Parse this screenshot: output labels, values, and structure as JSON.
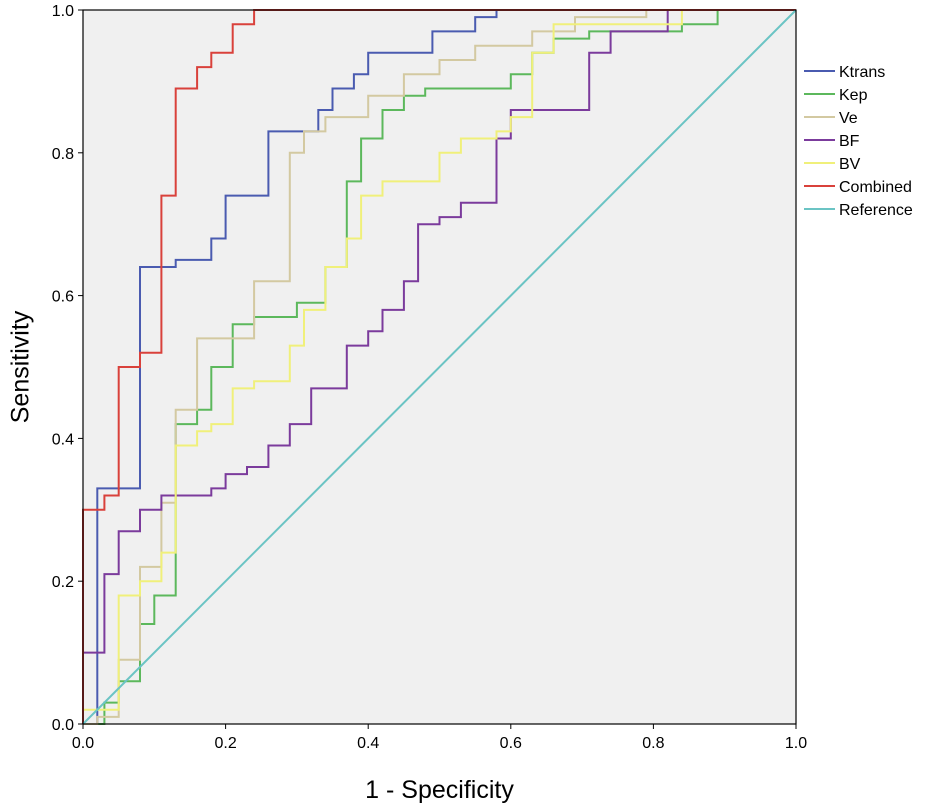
{
  "chart_data": {
    "type": "line",
    "title": "",
    "xlabel": "1 - Specificity",
    "ylabel": "Sensitivity",
    "xlim": [
      0,
      1
    ],
    "ylim": [
      0,
      1
    ],
    "xticks": [
      "0.0",
      "0.2",
      "0.4",
      "0.6",
      "0.8",
      "1.0"
    ],
    "yticks": [
      "0.0",
      "0.2",
      "0.4",
      "0.6",
      "0.8",
      "1.0"
    ],
    "grid": false,
    "legend_position": "right",
    "series": [
      {
        "name": "Ktrans",
        "color": "#4a5bb0",
        "step": true,
        "points": [
          [
            0,
            0
          ],
          [
            0.02,
            0
          ],
          [
            0.02,
            0.33
          ],
          [
            0.08,
            0.33
          ],
          [
            0.08,
            0.64
          ],
          [
            0.13,
            0.64
          ],
          [
            0.13,
            0.65
          ],
          [
            0.18,
            0.65
          ],
          [
            0.18,
            0.68
          ],
          [
            0.2,
            0.68
          ],
          [
            0.2,
            0.74
          ],
          [
            0.26,
            0.74
          ],
          [
            0.26,
            0.83
          ],
          [
            0.33,
            0.83
          ],
          [
            0.33,
            0.86
          ],
          [
            0.35,
            0.86
          ],
          [
            0.35,
            0.89
          ],
          [
            0.38,
            0.89
          ],
          [
            0.38,
            0.91
          ],
          [
            0.4,
            0.91
          ],
          [
            0.4,
            0.94
          ],
          [
            0.49,
            0.94
          ],
          [
            0.49,
            0.97
          ],
          [
            0.55,
            0.97
          ],
          [
            0.55,
            0.99
          ],
          [
            0.58,
            0.99
          ],
          [
            0.58,
            1
          ],
          [
            1,
            1
          ]
        ]
      },
      {
        "name": "Kep",
        "color": "#5cb85c",
        "step": true,
        "points": [
          [
            0,
            0
          ],
          [
            0.03,
            0
          ],
          [
            0.03,
            0.03
          ],
          [
            0.05,
            0.03
          ],
          [
            0.05,
            0.06
          ],
          [
            0.08,
            0.06
          ],
          [
            0.08,
            0.14
          ],
          [
            0.1,
            0.14
          ],
          [
            0.1,
            0.18
          ],
          [
            0.13,
            0.18
          ],
          [
            0.13,
            0.42
          ],
          [
            0.16,
            0.42
          ],
          [
            0.16,
            0.44
          ],
          [
            0.18,
            0.44
          ],
          [
            0.18,
            0.5
          ],
          [
            0.21,
            0.5
          ],
          [
            0.21,
            0.56
          ],
          [
            0.24,
            0.56
          ],
          [
            0.24,
            0.57
          ],
          [
            0.3,
            0.57
          ],
          [
            0.3,
            0.59
          ],
          [
            0.34,
            0.59
          ],
          [
            0.34,
            0.64
          ],
          [
            0.37,
            0.64
          ],
          [
            0.37,
            0.76
          ],
          [
            0.39,
            0.76
          ],
          [
            0.39,
            0.82
          ],
          [
            0.42,
            0.82
          ],
          [
            0.42,
            0.86
          ],
          [
            0.45,
            0.86
          ],
          [
            0.45,
            0.88
          ],
          [
            0.48,
            0.88
          ],
          [
            0.48,
            0.89
          ],
          [
            0.6,
            0.89
          ],
          [
            0.6,
            0.91
          ],
          [
            0.63,
            0.91
          ],
          [
            0.63,
            0.94
          ],
          [
            0.66,
            0.94
          ],
          [
            0.66,
            0.96
          ],
          [
            0.71,
            0.96
          ],
          [
            0.71,
            0.97
          ],
          [
            0.84,
            0.97
          ],
          [
            0.84,
            0.98
          ],
          [
            0.89,
            0.98
          ],
          [
            0.89,
            1
          ],
          [
            1,
            1
          ]
        ]
      },
      {
        "name": "Ve",
        "color": "#d3c9a1",
        "step": true,
        "points": [
          [
            0,
            0
          ],
          [
            0.02,
            0
          ],
          [
            0.02,
            0.01
          ],
          [
            0.05,
            0.01
          ],
          [
            0.05,
            0.09
          ],
          [
            0.08,
            0.09
          ],
          [
            0.08,
            0.22
          ],
          [
            0.11,
            0.22
          ],
          [
            0.11,
            0.31
          ],
          [
            0.13,
            0.31
          ],
          [
            0.13,
            0.44
          ],
          [
            0.16,
            0.44
          ],
          [
            0.16,
            0.54
          ],
          [
            0.24,
            0.54
          ],
          [
            0.24,
            0.62
          ],
          [
            0.29,
            0.62
          ],
          [
            0.29,
            0.8
          ],
          [
            0.31,
            0.8
          ],
          [
            0.31,
            0.83
          ],
          [
            0.34,
            0.83
          ],
          [
            0.34,
            0.85
          ],
          [
            0.4,
            0.85
          ],
          [
            0.4,
            0.88
          ],
          [
            0.45,
            0.88
          ],
          [
            0.45,
            0.91
          ],
          [
            0.5,
            0.91
          ],
          [
            0.5,
            0.93
          ],
          [
            0.55,
            0.93
          ],
          [
            0.55,
            0.95
          ],
          [
            0.63,
            0.95
          ],
          [
            0.63,
            0.97
          ],
          [
            0.69,
            0.97
          ],
          [
            0.69,
            0.99
          ],
          [
            0.79,
            0.99
          ],
          [
            0.79,
            1
          ],
          [
            1,
            1
          ]
        ]
      },
      {
        "name": "BF",
        "color": "#7b3b9c",
        "step": true,
        "points": [
          [
            0,
            0
          ],
          [
            0,
            0.1
          ],
          [
            0.03,
            0.1
          ],
          [
            0.03,
            0.21
          ],
          [
            0.05,
            0.21
          ],
          [
            0.05,
            0.27
          ],
          [
            0.08,
            0.27
          ],
          [
            0.08,
            0.3
          ],
          [
            0.11,
            0.3
          ],
          [
            0.11,
            0.32
          ],
          [
            0.18,
            0.32
          ],
          [
            0.18,
            0.33
          ],
          [
            0.2,
            0.33
          ],
          [
            0.2,
            0.35
          ],
          [
            0.23,
            0.35
          ],
          [
            0.23,
            0.36
          ],
          [
            0.26,
            0.36
          ],
          [
            0.26,
            0.39
          ],
          [
            0.29,
            0.39
          ],
          [
            0.29,
            0.42
          ],
          [
            0.32,
            0.42
          ],
          [
            0.32,
            0.47
          ],
          [
            0.37,
            0.47
          ],
          [
            0.37,
            0.53
          ],
          [
            0.4,
            0.53
          ],
          [
            0.4,
            0.55
          ],
          [
            0.42,
            0.55
          ],
          [
            0.42,
            0.58
          ],
          [
            0.45,
            0.58
          ],
          [
            0.45,
            0.62
          ],
          [
            0.47,
            0.62
          ],
          [
            0.47,
            0.7
          ],
          [
            0.5,
            0.7
          ],
          [
            0.5,
            0.71
          ],
          [
            0.53,
            0.71
          ],
          [
            0.53,
            0.73
          ],
          [
            0.55,
            0.73
          ],
          [
            0.55,
            0.73
          ],
          [
            0.58,
            0.73
          ],
          [
            0.58,
            0.82
          ],
          [
            0.6,
            0.82
          ],
          [
            0.6,
            0.86
          ],
          [
            0.71,
            0.86
          ],
          [
            0.71,
            0.94
          ],
          [
            0.74,
            0.94
          ],
          [
            0.74,
            0.97
          ],
          [
            0.82,
            0.97
          ],
          [
            0.82,
            1
          ],
          [
            1,
            1
          ]
        ]
      },
      {
        "name": "BV",
        "color": "#f0f07a",
        "step": true,
        "points": [
          [
            0,
            0
          ],
          [
            0,
            0.02
          ],
          [
            0.05,
            0.02
          ],
          [
            0.05,
            0.18
          ],
          [
            0.08,
            0.18
          ],
          [
            0.08,
            0.2
          ],
          [
            0.11,
            0.2
          ],
          [
            0.11,
            0.24
          ],
          [
            0.13,
            0.24
          ],
          [
            0.13,
            0.39
          ],
          [
            0.16,
            0.39
          ],
          [
            0.16,
            0.41
          ],
          [
            0.18,
            0.41
          ],
          [
            0.18,
            0.42
          ],
          [
            0.21,
            0.42
          ],
          [
            0.21,
            0.47
          ],
          [
            0.24,
            0.47
          ],
          [
            0.24,
            0.48
          ],
          [
            0.29,
            0.48
          ],
          [
            0.29,
            0.53
          ],
          [
            0.31,
            0.53
          ],
          [
            0.31,
            0.58
          ],
          [
            0.34,
            0.58
          ],
          [
            0.34,
            0.64
          ],
          [
            0.37,
            0.64
          ],
          [
            0.37,
            0.68
          ],
          [
            0.39,
            0.68
          ],
          [
            0.39,
            0.74
          ],
          [
            0.42,
            0.74
          ],
          [
            0.42,
            0.76
          ],
          [
            0.5,
            0.76
          ],
          [
            0.5,
            0.8
          ],
          [
            0.53,
            0.8
          ],
          [
            0.53,
            0.82
          ],
          [
            0.58,
            0.82
          ],
          [
            0.58,
            0.83
          ],
          [
            0.6,
            0.83
          ],
          [
            0.6,
            0.85
          ],
          [
            0.63,
            0.85
          ],
          [
            0.63,
            0.94
          ],
          [
            0.66,
            0.94
          ],
          [
            0.66,
            0.98
          ],
          [
            0.84,
            0.98
          ],
          [
            0.84,
            1
          ],
          [
            1,
            1
          ]
        ]
      },
      {
        "name": "Combined",
        "color": "#d9413b",
        "step": true,
        "points": [
          [
            0,
            0
          ],
          [
            0,
            0.3
          ],
          [
            0.03,
            0.3
          ],
          [
            0.03,
            0.32
          ],
          [
            0.05,
            0.32
          ],
          [
            0.05,
            0.5
          ],
          [
            0.08,
            0.5
          ],
          [
            0.08,
            0.52
          ],
          [
            0.11,
            0.52
          ],
          [
            0.11,
            0.74
          ],
          [
            0.13,
            0.74
          ],
          [
            0.13,
            0.89
          ],
          [
            0.16,
            0.89
          ],
          [
            0.16,
            0.92
          ],
          [
            0.18,
            0.92
          ],
          [
            0.18,
            0.94
          ],
          [
            0.21,
            0.94
          ],
          [
            0.21,
            0.98
          ],
          [
            0.24,
            0.98
          ],
          [
            0.24,
            1
          ],
          [
            1,
            1
          ]
        ]
      },
      {
        "name": "Reference",
        "color": "#6bc4c4",
        "step": false,
        "points": [
          [
            0,
            0
          ],
          [
            1,
            1
          ]
        ]
      }
    ]
  }
}
